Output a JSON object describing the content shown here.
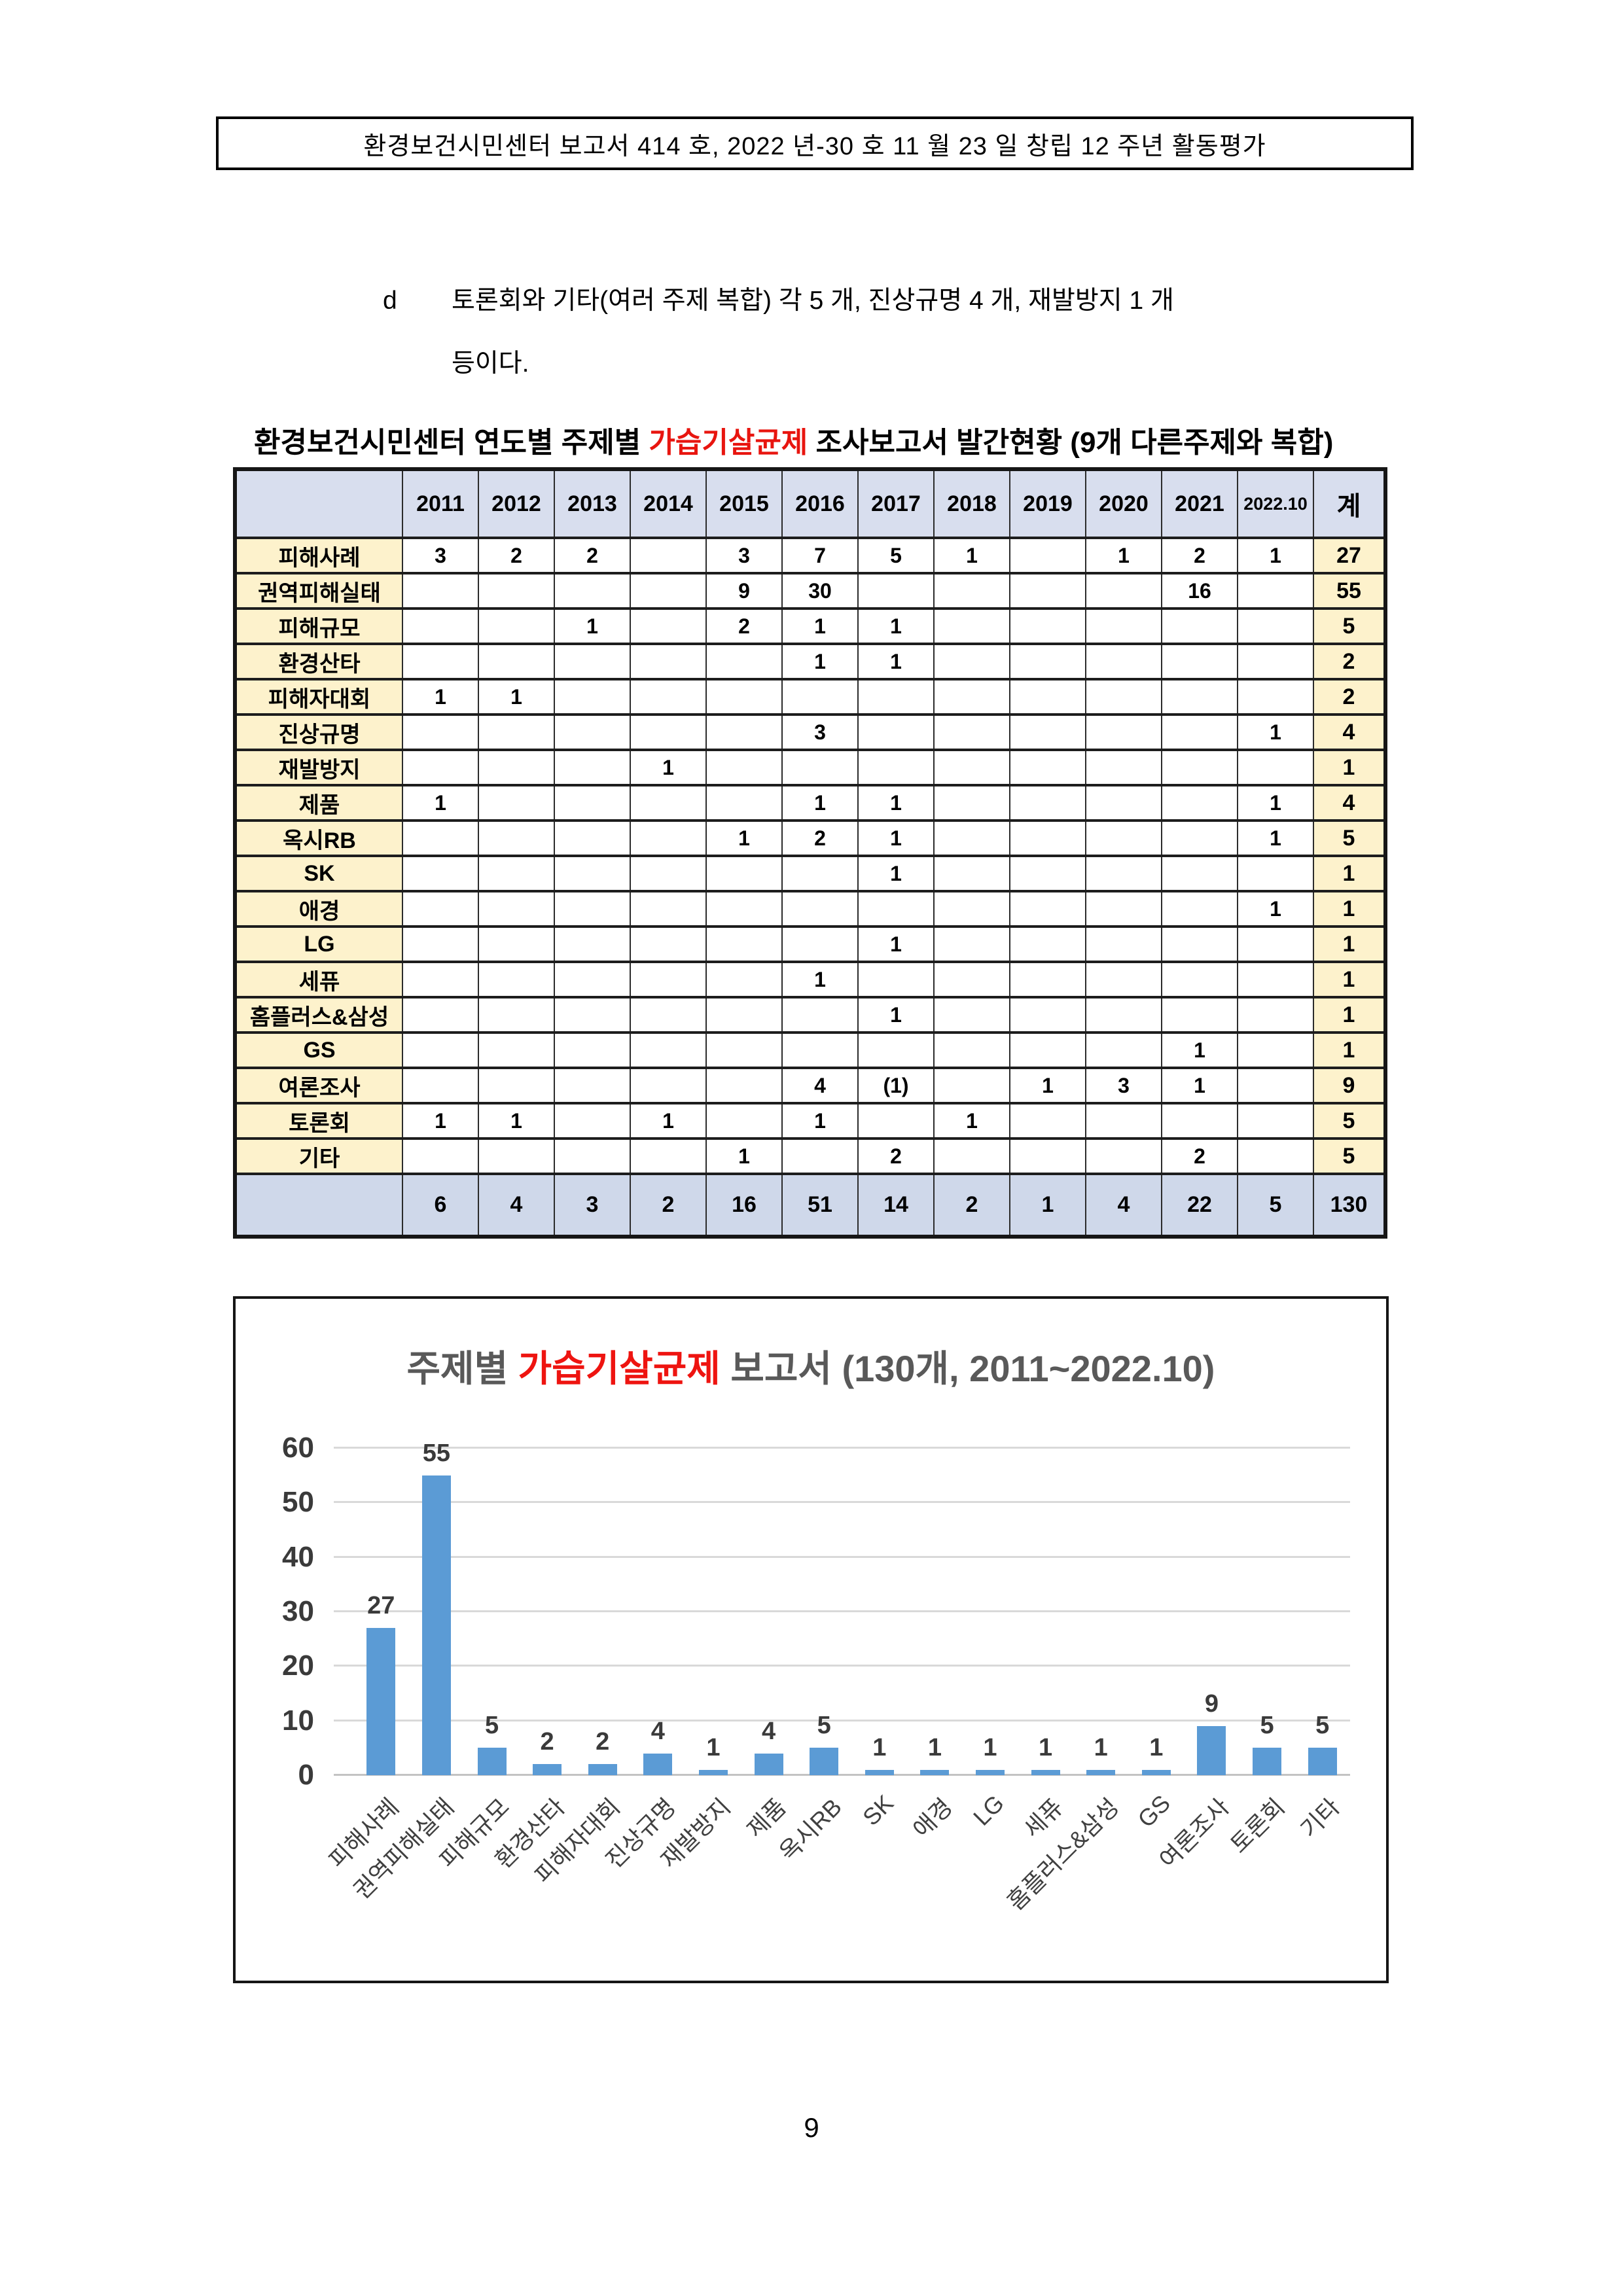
{
  "page": {
    "header_banner": "환경보건시민센터 보고서 414 호, 2022 년-30 호  11 월 23 일  창립 12 주년  활동평가",
    "paragraph": {
      "marker": "d",
      "line1": "토론회와 기타(여러 주제 복합) 각 5 개, 진상규명 4 개, 재발방지 1 개",
      "line2": "등이다."
    },
    "page_number": "9"
  },
  "table": {
    "title": {
      "prefix": "환경보건시민센터 연도별 주제별 ",
      "highlight": "가습기살균제",
      "suffix": " 조사보고서 발간현황 (9개 다른주제와 복합)"
    },
    "columns": [
      "",
      "2011",
      "2012",
      "2013",
      "2014",
      "2015",
      "2016",
      "2017",
      "2018",
      "2019",
      "2020",
      "2021",
      "2022.10",
      "계"
    ],
    "rows": [
      {
        "label": "피해사례",
        "values": [
          "3",
          "2",
          "2",
          "",
          "3",
          "7",
          "5",
          "1",
          "",
          "1",
          "2",
          "1",
          "27"
        ]
      },
      {
        "label": "권역피해실태",
        "values": [
          "",
          "",
          "",
          "",
          "9",
          "30",
          "",
          "",
          "",
          "",
          "16",
          "",
          "55"
        ]
      },
      {
        "label": "피해규모",
        "values": [
          "",
          "",
          "1",
          "",
          "2",
          "1",
          "1",
          "",
          "",
          "",
          "",
          "",
          "5"
        ]
      },
      {
        "label": "환경산타",
        "values": [
          "",
          "",
          "",
          "",
          "",
          "1",
          "1",
          "",
          "",
          "",
          "",
          "",
          "2"
        ]
      },
      {
        "label": "피해자대회",
        "values": [
          "1",
          "1",
          "",
          "",
          "",
          "",
          "",
          "",
          "",
          "",
          "",
          "",
          "2"
        ]
      },
      {
        "label": "진상규명",
        "values": [
          "",
          "",
          "",
          "",
          "",
          "3",
          "",
          "",
          "",
          "",
          "",
          "1",
          "4"
        ]
      },
      {
        "label": "재발방지",
        "values": [
          "",
          "",
          "",
          "1",
          "",
          "",
          "",
          "",
          "",
          "",
          "",
          "",
          "1"
        ]
      },
      {
        "label": "제품",
        "values": [
          "1",
          "",
          "",
          "",
          "",
          "1",
          "1",
          "",
          "",
          "",
          "",
          "1",
          "4"
        ]
      },
      {
        "label": "옥시RB",
        "values": [
          "",
          "",
          "",
          "",
          "1",
          "2",
          "1",
          "",
          "",
          "",
          "",
          "1",
          "5"
        ]
      },
      {
        "label": "SK",
        "values": [
          "",
          "",
          "",
          "",
          "",
          "",
          "1",
          "",
          "",
          "",
          "",
          "",
          "1"
        ]
      },
      {
        "label": "애경",
        "values": [
          "",
          "",
          "",
          "",
          "",
          "",
          "",
          "",
          "",
          "",
          "",
          "1",
          "1"
        ]
      },
      {
        "label": "LG",
        "values": [
          "",
          "",
          "",
          "",
          "",
          "",
          "1",
          "",
          "",
          "",
          "",
          "",
          "1"
        ]
      },
      {
        "label": "세퓨",
        "values": [
          "",
          "",
          "",
          "",
          "",
          "1",
          "",
          "",
          "",
          "",
          "",
          "",
          "1"
        ]
      },
      {
        "label": "홈플러스&삼성",
        "values": [
          "",
          "",
          "",
          "",
          "",
          "",
          "1",
          "",
          "",
          "",
          "",
          "",
          "1"
        ]
      },
      {
        "label": "GS",
        "values": [
          "",
          "",
          "",
          "",
          "",
          "",
          "",
          "",
          "",
          "",
          "1",
          "",
          "1"
        ]
      },
      {
        "label": "여론조사",
        "values": [
          "",
          "",
          "",
          "",
          "",
          "4",
          "(1)",
          "",
          "1",
          "3",
          "1",
          "",
          "9"
        ]
      },
      {
        "label": "토론회",
        "values": [
          "1",
          "1",
          "",
          "1",
          "",
          "1",
          "",
          "1",
          "",
          "",
          "",
          "",
          "5"
        ]
      },
      {
        "label": "기타",
        "values": [
          "",
          "",
          "",
          "",
          "1",
          "",
          "2",
          "",
          "",
          "",
          "2",
          "",
          "5"
        ]
      }
    ],
    "total_row": {
      "label": "",
      "values": [
        "6",
        "4",
        "3",
        "2",
        "16",
        "51",
        "14",
        "2",
        "1",
        "4",
        "22",
        "5",
        "130"
      ]
    }
  },
  "chart_data": {
    "type": "bar",
    "title": {
      "prefix": "주제별 ",
      "highlight": "가습기살균제",
      "suffix": " 보고서 (130개, 2011~2022.10)"
    },
    "categories": [
      "피해사례",
      "권역피해실태",
      "피해규모",
      "환경산타",
      "피해자대회",
      "진상규명",
      "재발방지",
      "제품",
      "옥시RB",
      "SK",
      "애경",
      "LG",
      "세퓨",
      "홈플러스&삼성",
      "GS",
      "여론조사",
      "토론회",
      "기타"
    ],
    "values": [
      27,
      55,
      5,
      2,
      2,
      4,
      1,
      4,
      5,
      1,
      1,
      1,
      1,
      1,
      1,
      9,
      5,
      5
    ],
    "xlabel": "",
    "ylabel": "",
    "ylim": [
      0,
      60
    ],
    "yticks": [
      0,
      10,
      20,
      30,
      40,
      50,
      60
    ],
    "grid": true,
    "legend": false,
    "bar_color": "#5b9bd5"
  },
  "colors": {
    "table_header_fill": "#d8deee",
    "table_label_fill": "#fdf2cc",
    "table_total_fill": "#cfd8ea",
    "bar_blue": "#5b9bd5",
    "highlight_red": "#e8150f",
    "chart_text_gray": "#595959"
  }
}
